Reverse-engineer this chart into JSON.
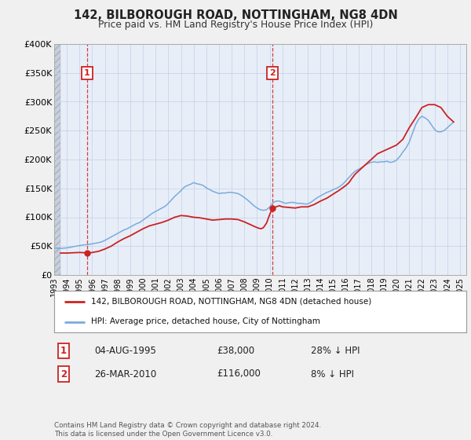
{
  "title": "142, BILBOROUGH ROAD, NOTTINGHAM, NG8 4DN",
  "subtitle": "Price paid vs. HM Land Registry's House Price Index (HPI)",
  "bg_color": "#f0f0f0",
  "plot_bg_color": "#e8eef8",
  "grid_color": "#c8d4e8",
  "hpi_color": "#7aabdc",
  "price_color": "#cc2222",
  "ylim": [
    0,
    400000
  ],
  "yticks": [
    0,
    50000,
    100000,
    150000,
    200000,
    250000,
    300000,
    350000,
    400000
  ],
  "ytick_labels": [
    "£0",
    "£50K",
    "£100K",
    "£150K",
    "£200K",
    "£250K",
    "£300K",
    "£350K",
    "£400K"
  ],
  "xlim_start": 1993.0,
  "xlim_end": 2025.5,
  "xtick_years": [
    1993,
    1994,
    1995,
    1996,
    1997,
    1998,
    1999,
    2000,
    2001,
    2002,
    2003,
    2004,
    2005,
    2006,
    2007,
    2008,
    2009,
    2010,
    2011,
    2012,
    2013,
    2014,
    2015,
    2016,
    2017,
    2018,
    2019,
    2020,
    2021,
    2022,
    2023,
    2024,
    2025
  ],
  "legend_label_price": "142, BILBOROUGH ROAD, NOTTINGHAM, NG8 4DN (detached house)",
  "legend_label_hpi": "HPI: Average price, detached house, City of Nottingham",
  "transaction1_date": "04-AUG-1995",
  "transaction1_price": "£38,000",
  "transaction1_hpi": "28% ↓ HPI",
  "transaction1_x": 1995.59,
  "transaction1_y": 38000,
  "transaction2_date": "26-MAR-2010",
  "transaction2_price": "£116,000",
  "transaction2_hpi": "8% ↓ HPI",
  "transaction2_x": 2010.23,
  "transaction2_y": 116000,
  "footer": "Contains HM Land Registry data © Crown copyright and database right 2024.\nThis data is licensed under the Open Government Licence v3.0.",
  "hpi_data_x": [
    1993.0,
    1993.25,
    1993.5,
    1993.75,
    1994.0,
    1994.25,
    1994.5,
    1994.75,
    1995.0,
    1995.25,
    1995.5,
    1995.75,
    1996.0,
    1996.25,
    1996.5,
    1996.75,
    1997.0,
    1997.25,
    1997.5,
    1997.75,
    1998.0,
    1998.25,
    1998.5,
    1998.75,
    1999.0,
    1999.25,
    1999.5,
    1999.75,
    2000.0,
    2000.25,
    2000.5,
    2000.75,
    2001.0,
    2001.25,
    2001.5,
    2001.75,
    2002.0,
    2002.25,
    2002.5,
    2002.75,
    2003.0,
    2003.25,
    2003.5,
    2003.75,
    2004.0,
    2004.25,
    2004.5,
    2004.75,
    2005.0,
    2005.25,
    2005.5,
    2005.75,
    2006.0,
    2006.25,
    2006.5,
    2006.75,
    2007.0,
    2007.25,
    2007.5,
    2007.75,
    2008.0,
    2008.25,
    2008.5,
    2008.75,
    2009.0,
    2009.25,
    2009.5,
    2009.75,
    2010.0,
    2010.25,
    2010.5,
    2010.75,
    2011.0,
    2011.25,
    2011.5,
    2011.75,
    2012.0,
    2012.25,
    2012.5,
    2012.75,
    2013.0,
    2013.25,
    2013.5,
    2013.75,
    2014.0,
    2014.25,
    2014.5,
    2014.75,
    2015.0,
    2015.25,
    2015.5,
    2015.75,
    2016.0,
    2016.25,
    2016.5,
    2016.75,
    2017.0,
    2017.25,
    2017.5,
    2017.75,
    2018.0,
    2018.25,
    2018.5,
    2018.75,
    2019.0,
    2019.25,
    2019.5,
    2019.75,
    2020.0,
    2020.25,
    2020.5,
    2020.75,
    2021.0,
    2021.25,
    2021.5,
    2021.75,
    2022.0,
    2022.25,
    2022.5,
    2022.75,
    2023.0,
    2023.25,
    2023.5,
    2023.75,
    2024.0,
    2024.25,
    2024.5
  ],
  "hpi_data_y": [
    47000,
    46500,
    46000,
    46500,
    47000,
    48000,
    49000,
    50000,
    51000,
    52000,
    52500,
    53000,
    54000,
    55000,
    56000,
    57500,
    60000,
    63000,
    66000,
    69000,
    72000,
    75000,
    78000,
    80000,
    83000,
    86000,
    89000,
    91000,
    95000,
    99000,
    103000,
    107000,
    110000,
    113000,
    116000,
    119000,
    124000,
    130000,
    136000,
    141000,
    146000,
    152000,
    155000,
    157000,
    160000,
    158000,
    157000,
    155000,
    151000,
    148000,
    145000,
    143000,
    141000,
    142000,
    142000,
    143000,
    143000,
    142000,
    141000,
    138000,
    134000,
    130000,
    125000,
    120000,
    116000,
    113000,
    112000,
    113000,
    118000,
    125000,
    128000,
    128000,
    126000,
    124000,
    125000,
    126000,
    125000,
    124000,
    124000,
    123000,
    123000,
    126000,
    130000,
    134000,
    137000,
    140000,
    143000,
    145000,
    148000,
    150000,
    153000,
    157000,
    163000,
    169000,
    175000,
    180000,
    183000,
    186000,
    190000,
    193000,
    195000,
    196000,
    195000,
    196000,
    196000,
    197000,
    195000,
    196000,
    199000,
    205000,
    213000,
    220000,
    230000,
    245000,
    260000,
    270000,
    275000,
    272000,
    268000,
    260000,
    252000,
    248000,
    248000,
    250000,
    255000,
    260000,
    265000
  ],
  "price_data_x": [
    1993.5,
    1994.0,
    1994.5,
    1995.0,
    1995.5,
    1995.75,
    1996.0,
    1996.5,
    1997.0,
    1997.5,
    1998.0,
    1998.5,
    1999.0,
    1999.5,
    2000.0,
    2000.5,
    2001.0,
    2001.5,
    2002.0,
    2002.5,
    2003.0,
    2003.5,
    2004.0,
    2004.5,
    2005.0,
    2005.5,
    2006.0,
    2006.5,
    2007.0,
    2007.5,
    2008.0,
    2008.5,
    2009.0,
    2009.3,
    2009.5,
    2009.75,
    2010.0,
    2010.23,
    2010.5,
    2010.75,
    2011.0,
    2011.5,
    2012.0,
    2012.5,
    2013.0,
    2013.5,
    2014.0,
    2014.5,
    2015.0,
    2015.5,
    2016.0,
    2016.25,
    2016.5,
    2016.75,
    2017.0,
    2017.5,
    2018.0,
    2018.5,
    2019.0,
    2019.5,
    2020.0,
    2020.5,
    2021.0,
    2021.5,
    2022.0,
    2022.5,
    2023.0,
    2023.5,
    2024.0,
    2024.5
  ],
  "price_data_y": [
    38000,
    38000,
    38500,
    39000,
    38500,
    38000,
    39000,
    41000,
    45000,
    50000,
    57000,
    63000,
    68000,
    74000,
    80000,
    85000,
    88000,
    91000,
    95000,
    100000,
    103000,
    102000,
    100000,
    99000,
    97000,
    95000,
    96000,
    97000,
    97000,
    96000,
    92000,
    87000,
    82000,
    80000,
    82000,
    90000,
    105000,
    116000,
    118000,
    120000,
    118000,
    117000,
    116000,
    118000,
    118000,
    122000,
    128000,
    133000,
    140000,
    147000,
    155000,
    160000,
    168000,
    175000,
    180000,
    190000,
    200000,
    210000,
    215000,
    220000,
    225000,
    235000,
    255000,
    272000,
    290000,
    295000,
    295000,
    290000,
    275000,
    265000
  ]
}
